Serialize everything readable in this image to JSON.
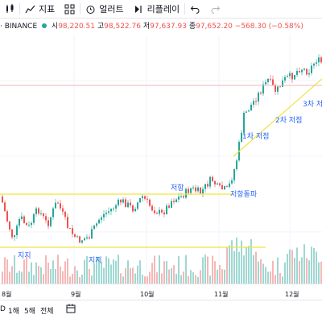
{
  "toolbar": {
    "indicators_label": "지표",
    "alerts_label": "얼러트",
    "replay_label": "리플레이"
  },
  "legend": {
    "symbol": "· BINANCE",
    "open_label": "시",
    "open": "98,220.51",
    "high_label": "고",
    "high": "98,522.76",
    "low_label": "저",
    "low": "97,637.93",
    "close_label": "종",
    "close": "97,652.20",
    "change": "−568.30 (−0.58%)"
  },
  "annotations": {
    "support_1": "지지",
    "support_2": "지지",
    "resistance": "저항",
    "breakout": "저항돌파",
    "low_1": "1차 저점",
    "low_2": "2차 저점",
    "low_3": "3차 저"
  },
  "xaxis": {
    "labels": [
      "8월",
      "9월",
      "10월",
      "11월",
      "12월"
    ]
  },
  "bottombar": {
    "range_1d": "D",
    "range_1m": "1해",
    "range_5m": "5해",
    "range_all": "전체"
  },
  "colors": {
    "up": "#26a69a",
    "down": "#ef5350",
    "level": "#f0e442",
    "accent": "#2962ff"
  }
}
